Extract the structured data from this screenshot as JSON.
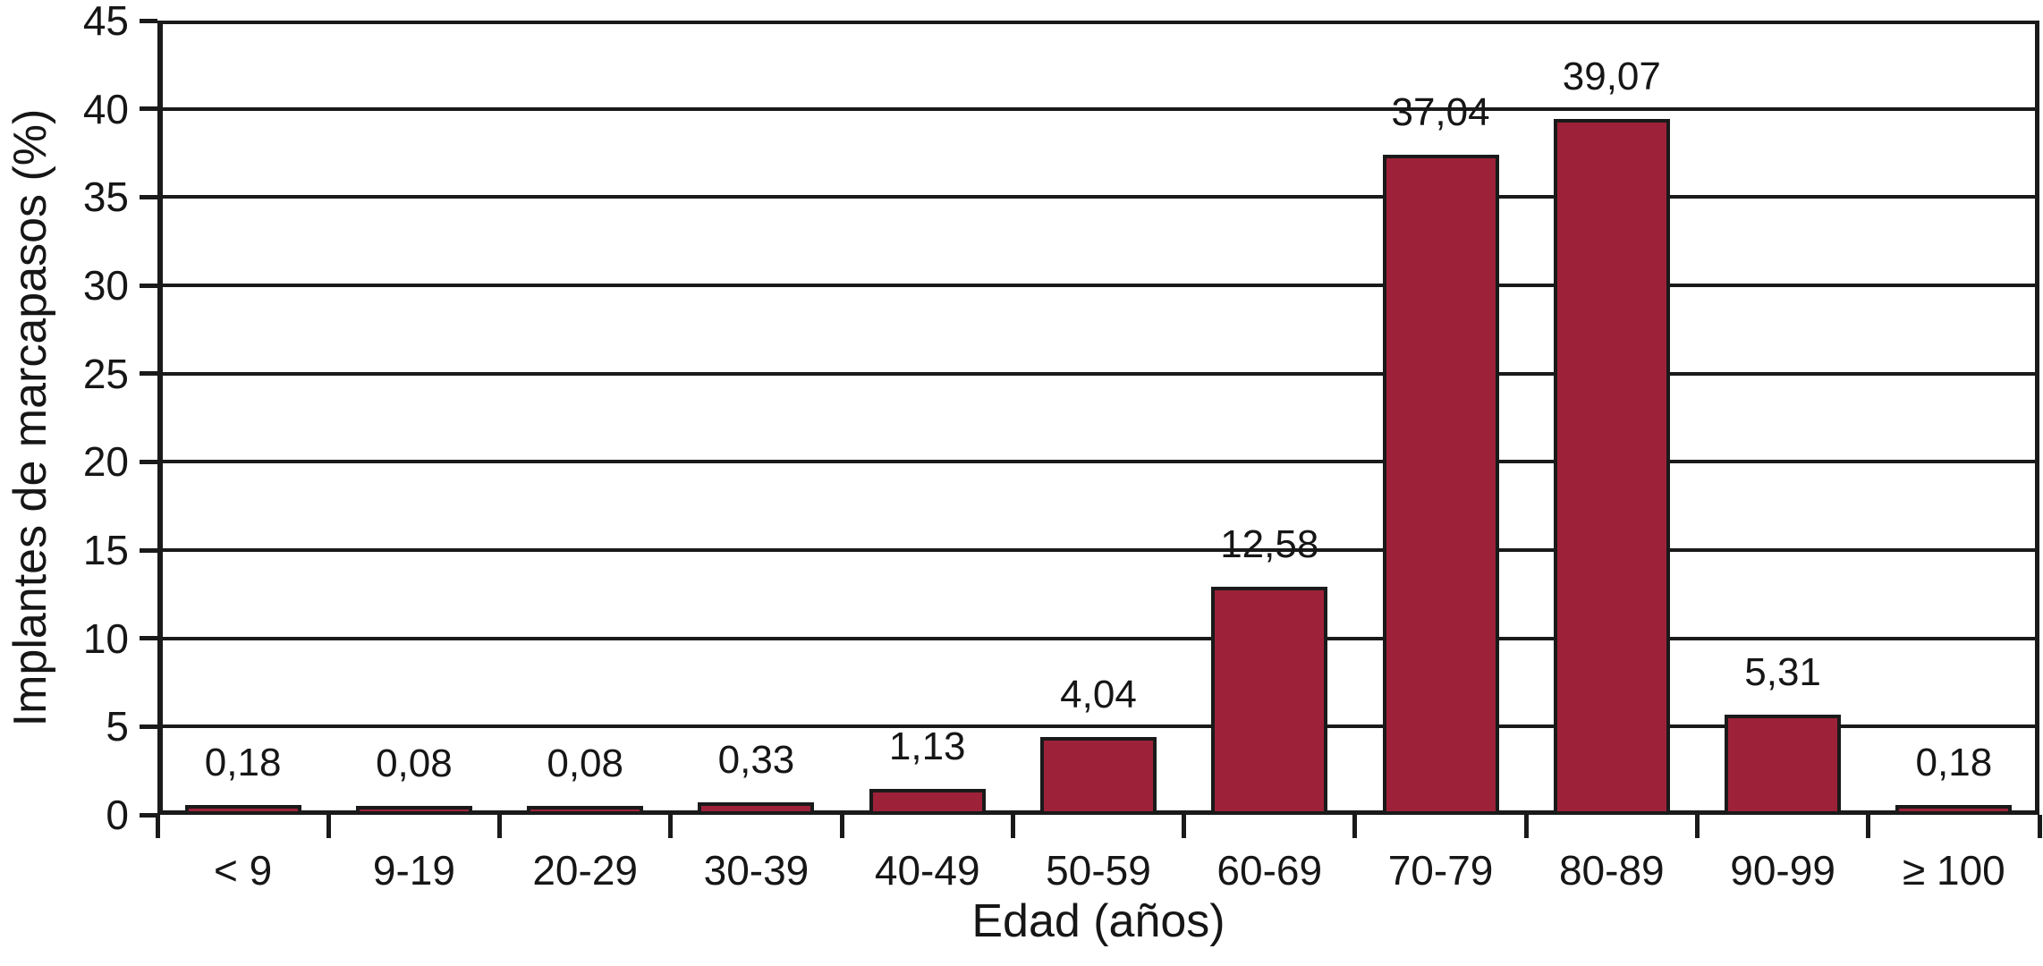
{
  "chart_data": {
    "type": "bar",
    "title": "",
    "xlabel": "Edad (años)",
    "ylabel": "Implantes de marcapasos (%)",
    "categories": [
      "< 9",
      "9-19",
      "20-29",
      "30-39",
      "40-49",
      "50-59",
      "60-69",
      "70-79",
      "80-89",
      "90-99",
      "≥ 100"
    ],
    "values": [
      0.18,
      0.08,
      0.08,
      0.33,
      1.13,
      4.04,
      12.58,
      37.04,
      39.07,
      5.31,
      0.18
    ],
    "value_labels": [
      "0,18",
      "0,08",
      "0,08",
      "0,33",
      "1,13",
      "4,04",
      "12,58",
      "37,04",
      "39,07",
      "5,31",
      "0,18"
    ],
    "ylim": [
      0,
      45
    ],
    "yticks": [
      0,
      5,
      10,
      15,
      20,
      25,
      30,
      35,
      40,
      45
    ],
    "ytick_labels": [
      "0",
      "5",
      "10",
      "15",
      "20",
      "25",
      "30",
      "35",
      "40",
      "45"
    ],
    "grid": "horizontal",
    "legend": "none",
    "colors": {
      "bar_fill": "#9D2239",
      "bar_border": "#1A1A1A",
      "axis": "#1A1A1A",
      "text": "#161616",
      "background": "#FFFFFF"
    }
  }
}
